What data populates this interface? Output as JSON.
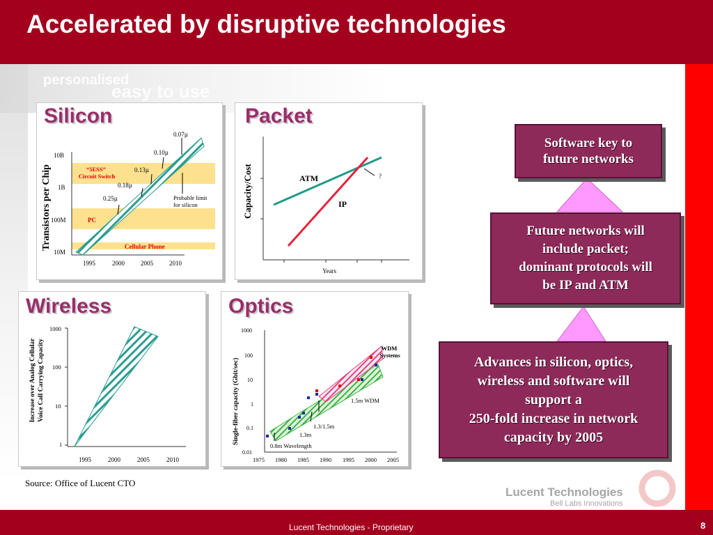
{
  "title": "Accelerated by disruptive technologies",
  "background_words": [
    "personalised",
    "easy to use"
  ],
  "colors": {
    "title_bar": "#a3001e",
    "accent_red": "#ff0000",
    "callout_fill": "#8e2a5a",
    "connector": "#ff99ff",
    "panel_title": "#9a2d6b",
    "band_highlight": "#fde18e",
    "hatch": "#2a9d8f"
  },
  "panels": {
    "silicon": {
      "title": "Silicon",
      "ylabel": "Transistors per Chip",
      "yticks": [
        "10B",
        "1B",
        "100M",
        "10M"
      ],
      "xticks": [
        "1995",
        "2000",
        "2005",
        "2010"
      ],
      "annotations": {
        "a007": "0.07µ",
        "a010": "0.10µ",
        "a013": "0.13µ",
        "a018": "0.18µ",
        "a025": "0.25µ",
        "limit": "Probable limit\nfor silicon",
        "switch": "“5ESS”\nCircuit Switch",
        "pc": "PC",
        "phone": "Cellular Phone"
      }
    },
    "packet": {
      "title": "Packet",
      "ylabel": "Capacity/Cost",
      "xlabel": "Years",
      "series": {
        "atm": "ATM",
        "ip": "IP"
      },
      "question": "?"
    },
    "wireless": {
      "title": "Wireless",
      "ylabel": "Increase over Analog Cellular\nVoice Call Carrying Capacity",
      "yticks": [
        "1000",
        "100",
        "10",
        "1"
      ],
      "xticks": [
        "1995",
        "2000",
        "2005",
        "2010"
      ]
    },
    "optics": {
      "title": "Optics",
      "ylabel": "Single-fiber capacity (Gbit/sec)",
      "yticks": [
        "1000",
        "100",
        "10",
        "1",
        "0.1",
        "0.01"
      ],
      "xticks": [
        "1975",
        "1980",
        "1985",
        "1990",
        "1995",
        "2000",
        "2005"
      ],
      "labels": {
        "wdm_systems": "WDM\nSystems",
        "wdm_15": "1.5m WDM",
        "l1315": "1.3/1.5m",
        "l13": "1.3m",
        "l08": "0.8m Wavelength"
      }
    }
  },
  "callouts": {
    "c1": "Software key to\nfuture networks",
    "c2": "Future networks will\ninclude packet;\ndominant protocols will\nbe IP and ATM",
    "c3": "Advances in silicon, optics,\nwireless and software will\nsupport a\n250-fold increase in network\ncapacity by 2005"
  },
  "source": "Source:  Office of Lucent CTO",
  "logo": {
    "name": "Lucent Technologies",
    "tagline": "Bell Labs Innovations"
  },
  "footer": "Lucent Technologies - Proprietary",
  "page_number": "8"
}
